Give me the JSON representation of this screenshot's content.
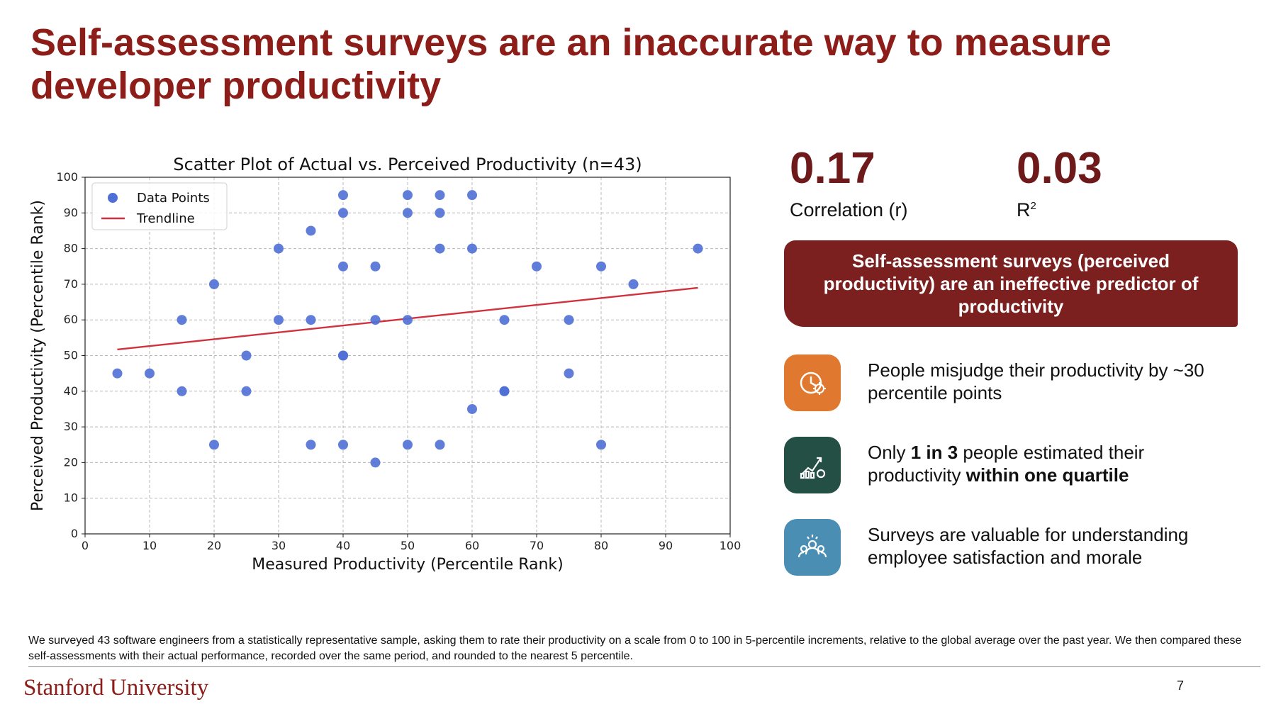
{
  "slide": {
    "title": "Self-assessment surveys are an inaccurate way to measure developer productivity",
    "footnote": "We surveyed 43 software engineers from a statistically representative sample, asking them to rate their productivity on a scale from 0 to 100 in 5-percentile increments, relative to the global average over the past year. We then compared these self-assessments with their actual performance, recorded over the same period, and rounded to the nearest 5 percentile.",
    "logo_text": "Stanford University",
    "page_number": "7",
    "colors": {
      "title": "#8c1d18",
      "callout_bg": "#7b1f1f"
    }
  },
  "stats": [
    {
      "value": "0.17",
      "label": "Correlation (r)"
    },
    {
      "value": "0.03",
      "label_main": "R",
      "label_sup": "2"
    }
  ],
  "callout": "Self-assessment surveys (perceived productivity) are an ineffective predictor of productivity",
  "bullets": [
    {
      "icon": "clock-gear-icon",
      "color": "#e0782f",
      "text_html": "People misjudge their productivity by ~30 percentile points"
    },
    {
      "icon": "chart-gear-icon",
      "color": "#234f45",
      "text_html": "Only <b>1 in 3</b> people estimated their productivity <b>within one quartile</b>"
    },
    {
      "icon": "team-icon",
      "color": "#4a8eb4",
      "text_html": "Surveys are valuable for understanding employee satisfaction and morale"
    }
  ],
  "chart_data": {
    "type": "scatter",
    "title": "Scatter Plot of Actual vs. Perceived Productivity (n=43)",
    "xlabel": "Measured Productivity (Percentile Rank)",
    "ylabel": "Perceived Productivity (Percentile Rank)",
    "xlim": [
      0,
      100
    ],
    "ylim": [
      0,
      100
    ],
    "xticks": [
      0,
      10,
      20,
      30,
      40,
      50,
      60,
      70,
      80,
      90,
      100
    ],
    "yticks": [
      0,
      10,
      20,
      30,
      40,
      50,
      60,
      70,
      80,
      90,
      100
    ],
    "grid": true,
    "legend_position": "top-left",
    "series": [
      {
        "name": "Data Points",
        "kind": "scatter",
        "color": "#4f6fd6",
        "points": [
          [
            5,
            45
          ],
          [
            10,
            45
          ],
          [
            15,
            60
          ],
          [
            15,
            40
          ],
          [
            20,
            70
          ],
          [
            20,
            25
          ],
          [
            25,
            50
          ],
          [
            25,
            40
          ],
          [
            30,
            80
          ],
          [
            30,
            60
          ],
          [
            35,
            85
          ],
          [
            35,
            60
          ],
          [
            35,
            25
          ],
          [
            40,
            95
          ],
          [
            40,
            90
          ],
          [
            40,
            75
          ],
          [
            40,
            50
          ],
          [
            40,
            50
          ],
          [
            40,
            25
          ],
          [
            45,
            75
          ],
          [
            45,
            60
          ],
          [
            45,
            20
          ],
          [
            50,
            95
          ],
          [
            50,
            90
          ],
          [
            50,
            60
          ],
          [
            50,
            25
          ],
          [
            55,
            95
          ],
          [
            55,
            90
          ],
          [
            55,
            80
          ],
          [
            55,
            25
          ],
          [
            60,
            95
          ],
          [
            60,
            80
          ],
          [
            60,
            35
          ],
          [
            65,
            60
          ],
          [
            65,
            40
          ],
          [
            65,
            40
          ],
          [
            70,
            75
          ],
          [
            75,
            60
          ],
          [
            75,
            45
          ],
          [
            80,
            75
          ],
          [
            80,
            25
          ],
          [
            85,
            70
          ],
          [
            95,
            80
          ]
        ]
      },
      {
        "name": "Trendline",
        "kind": "line",
        "color": "#d0313d",
        "points": [
          [
            5,
            51.7
          ],
          [
            95,
            69
          ]
        ]
      }
    ]
  }
}
